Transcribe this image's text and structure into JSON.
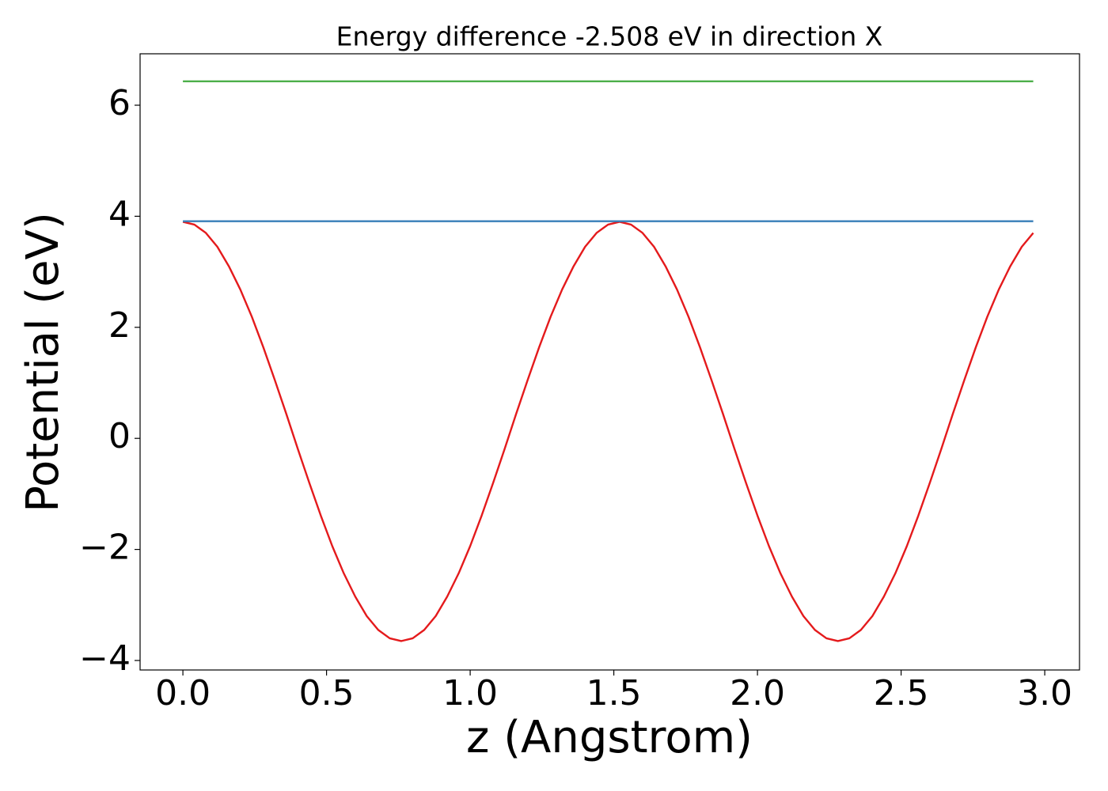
{
  "chart_data": {
    "type": "line",
    "title": "Energy difference -2.508 eV in direction X",
    "x_label": "z (Angstrom)",
    "y_label": "Potential (eV)",
    "xlim": [
      -0.149,
      3.121
    ],
    "ylim": [
      -4.171,
      6.926
    ],
    "xticks": [
      {
        "value": 0,
        "label": "0.0"
      },
      {
        "value": 0.5,
        "label": "0.5"
      },
      {
        "value": 1,
        "label": "1.0"
      },
      {
        "value": 1.5,
        "label": "1.5"
      },
      {
        "value": 2,
        "label": "2.0"
      },
      {
        "value": 2.5,
        "label": "2.5"
      },
      {
        "value": 3,
        "label": "3.0"
      }
    ],
    "yticks": [
      {
        "value": -4,
        "label": "−4"
      },
      {
        "value": -2,
        "label": "−2"
      },
      0,
      2,
      4,
      6
    ],
    "grid": false,
    "series": [
      {
        "color": "#e41a1c",
        "x": [
          0,
          0.04,
          0.08,
          0.12,
          0.16,
          0.2,
          0.24,
          0.28,
          0.32,
          0.36,
          0.4,
          0.44,
          0.48,
          0.52,
          0.56,
          0.6,
          0.64,
          0.68,
          0.72,
          0.76,
          0.8,
          0.84,
          0.88,
          0.92,
          0.96,
          1,
          1.04,
          1.08,
          1.12,
          1.16,
          1.2,
          1.24,
          1.28,
          1.32,
          1.36,
          1.4,
          1.44,
          1.48,
          1.52,
          1.56,
          1.6,
          1.64,
          1.68,
          1.72,
          1.76,
          1.8,
          1.84,
          1.88,
          1.92,
          1.96,
          2,
          2.04,
          2.08,
          2.12,
          2.16,
          2.2,
          2.24,
          2.28,
          2.32,
          2.36,
          2.4,
          2.44,
          2.48,
          2.52,
          2.56,
          2.6,
          2.64,
          2.68,
          2.72,
          2.76,
          2.8,
          2.84,
          2.88,
          2.92,
          2.96
        ],
        "values": [
          3.9,
          3.85,
          3.7,
          3.45,
          3.1,
          2.68,
          2.19,
          1.64,
          1.05,
          0.44,
          -0.19,
          -0.8,
          -1.39,
          -1.94,
          -2.43,
          -2.85,
          -3.2,
          -3.45,
          -3.6,
          -3.65,
          -3.6,
          -3.45,
          -3.2,
          -2.85,
          -2.43,
          -1.94,
          -1.39,
          -0.8,
          -0.19,
          0.44,
          1.05,
          1.64,
          2.19,
          2.68,
          3.1,
          3.45,
          3.7,
          3.85,
          3.9,
          3.85,
          3.7,
          3.45,
          3.1,
          2.68,
          2.19,
          1.64,
          1.05,
          0.44,
          -0.19,
          -0.8,
          -1.39,
          -1.94,
          -2.43,
          -2.85,
          -3.2,
          -3.45,
          -3.6,
          -3.65,
          -3.6,
          -3.45,
          -3.2,
          -2.85,
          -2.43,
          -1.94,
          -1.39,
          -0.8,
          -0.19,
          0.44,
          1.05,
          1.64,
          2.19,
          2.68,
          3.1,
          3.45,
          3.7
        ]
      },
      {
        "color": "#377eb8",
        "x": [
          0,
          2.96
        ],
        "values": [
          3.91,
          3.91
        ]
      },
      {
        "color": "#4daf4a",
        "x": [
          0,
          2.96
        ],
        "values": [
          6.43,
          6.43
        ]
      }
    ]
  }
}
